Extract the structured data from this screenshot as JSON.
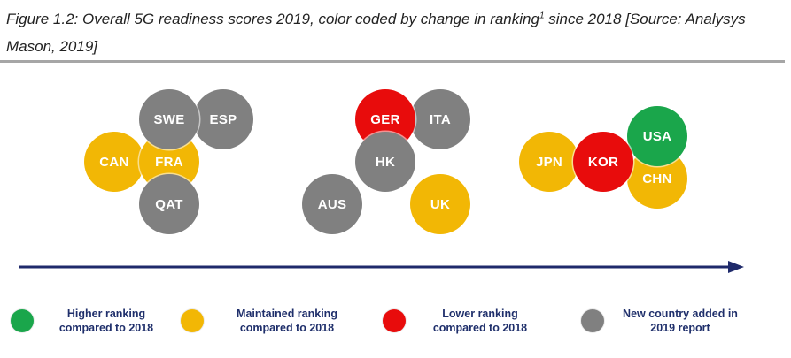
{
  "caption": {
    "text_before_sup": "Figure 1.2: Overall 5G readiness scores 2019, color coded by change in ranking",
    "footnote_mark": "1",
    "text_after_sup": " since 2018 [Source: Analysys Mason, 2019]"
  },
  "colors": {
    "higher": "#1aa64b",
    "maintained": "#f2b705",
    "lower": "#e80c0c",
    "new": "#808080",
    "arrow": "#1f2a6b",
    "legend_text": "#1f2f6b"
  },
  "groups": [
    {
      "countries": [
        {
          "code": "SWE",
          "status": "new"
        },
        {
          "code": "ESP",
          "status": "new"
        },
        {
          "code": "CAN",
          "status": "maintained"
        },
        {
          "code": "FRA",
          "status": "maintained"
        },
        {
          "code": "QAT",
          "status": "new"
        }
      ]
    },
    {
      "countries": [
        {
          "code": "GER",
          "status": "lower"
        },
        {
          "code": "ITA",
          "status": "new"
        },
        {
          "code": "HK",
          "status": "new"
        },
        {
          "code": "AUS",
          "status": "new"
        },
        {
          "code": "UK",
          "status": "maintained"
        }
      ]
    },
    {
      "countries": [
        {
          "code": "JPN",
          "status": "maintained"
        },
        {
          "code": "KOR",
          "status": "lower"
        },
        {
          "code": "USA",
          "status": "higher"
        },
        {
          "code": "CHN",
          "status": "maintained"
        }
      ]
    }
  ],
  "legend": [
    {
      "status": "higher",
      "label": "Higher ranking\ncompared to 2018"
    },
    {
      "status": "maintained",
      "label": "Maintained ranking\ncompared to 2018"
    },
    {
      "status": "lower",
      "label": "Lower ranking\ncompared to 2018"
    },
    {
      "status": "new",
      "label": "New country added in\n2019 report"
    }
  ]
}
